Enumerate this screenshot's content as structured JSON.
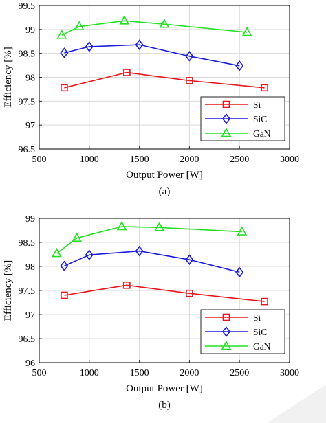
{
  "chart_data": [
    {
      "type": "line",
      "caption": "(a)",
      "xlabel": "Output Power [W]",
      "ylabel": "Efficiency [%]",
      "xlim": [
        500,
        3000
      ],
      "ylim": [
        96.5,
        99.5
      ],
      "xticks": [
        "500",
        "1000",
        "1500",
        "2000",
        "2500",
        "3000"
      ],
      "yticks": [
        "96.5",
        "97",
        "97.5",
        "98",
        "98.5",
        "99",
        "99.5"
      ],
      "grid": true,
      "legend_position": "bottom-right",
      "series": [
        {
          "name": "Si",
          "marker": "square",
          "color": "#e8141b",
          "x": [
            750,
            1375,
            2000,
            2750
          ],
          "y": [
            97.78,
            98.1,
            97.93,
            97.78
          ]
        },
        {
          "name": "SiC",
          "marker": "diamond",
          "color": "#1a1adb",
          "x": [
            750,
            1000,
            1500,
            2000,
            2500
          ],
          "y": [
            98.51,
            98.64,
            98.68,
            98.44,
            98.24
          ]
        },
        {
          "name": "GaN",
          "marker": "triangle",
          "color": "#22e022",
          "x": [
            725,
            900,
            1350,
            1750,
            2575
          ],
          "y": [
            98.88,
            99.06,
            99.18,
            99.11,
            98.94
          ]
        }
      ]
    },
    {
      "type": "line",
      "caption": "(b)",
      "xlabel": "Output Power [W]",
      "ylabel": "Efficiency [%]",
      "xlim": [
        500,
        3000
      ],
      "ylim": [
        96,
        99
      ],
      "xticks": [
        "500",
        "1000",
        "1500",
        "2000",
        "2500",
        "3000"
      ],
      "yticks": [
        "96",
        "96.5",
        "97",
        "97.5",
        "98",
        "98.5",
        "99"
      ],
      "grid": true,
      "legend_position": "bottom-right",
      "series": [
        {
          "name": "Si",
          "marker": "square",
          "color": "#e8141b",
          "x": [
            750,
            1375,
            2000,
            2750
          ],
          "y": [
            97.4,
            97.61,
            97.44,
            97.27
          ]
        },
        {
          "name": "SiC",
          "marker": "diamond",
          "color": "#1a1adb",
          "x": [
            750,
            1000,
            1500,
            2000,
            2500
          ],
          "y": [
            98.01,
            98.24,
            98.32,
            98.14,
            97.88
          ]
        },
        {
          "name": "GaN",
          "marker": "triangle",
          "color": "#22e022",
          "x": [
            675,
            875,
            1325,
            1700,
            2525
          ],
          "y": [
            98.27,
            98.59,
            98.83,
            98.81,
            98.72
          ]
        }
      ]
    }
  ]
}
